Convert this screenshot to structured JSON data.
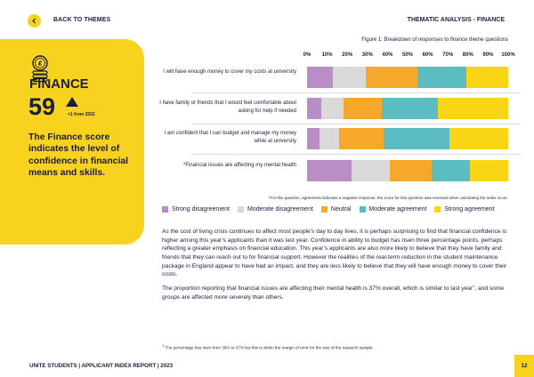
{
  "header": {
    "back_label": "BACK TO THEMES",
    "section_label": "THEMATIC ANALYSIS - FINANCE"
  },
  "panel": {
    "title": "FINANCE",
    "score": "59",
    "change": "+1 from 2022",
    "description": "The Finance score indicates the level of confidence in financial means and skills.",
    "accent_color": "#f7d21e"
  },
  "chart_data": {
    "type": "bar",
    "orientation": "horizontal-stacked",
    "title": "Figure 1: Breakdown of responses to finance theme questions",
    "x_ticks": [
      "0%",
      "10%",
      "20%",
      "30%",
      "40%",
      "50%",
      "60%",
      "70%",
      "80%",
      "90%",
      "100%"
    ],
    "xlim": [
      0,
      100
    ],
    "categories": [
      "I will have enough money to cover my costs at university",
      "I have family or friends that I would feel comfortable about asking for help if needed",
      "I am confident that I can budget and manage my money while at university",
      "*Financial issues are affecting my mental health"
    ],
    "series": [
      {
        "name": "Strong disagreement",
        "color": "#b98dc6",
        "values": [
          13,
          7,
          6,
          22
        ]
      },
      {
        "name": "Moderate disagreement",
        "color": "#d9d9d9",
        "values": [
          16,
          11,
          10,
          19
        ]
      },
      {
        "name": "Neutral",
        "color": "#f5a82a",
        "values": [
          26,
          19,
          22,
          21
        ]
      },
      {
        "name": "Moderate agreement",
        "color": "#5bbcc1",
        "values": [
          24,
          28,
          33,
          19
        ]
      },
      {
        "name": "Strong agreement",
        "color": "#fad515",
        "values": [
          21,
          35,
          29,
          19
        ]
      }
    ],
    "legend_position": "bottom",
    "footnote": "*For this question, agreement indicates a negative response; the score for this question was reversed when calculating the index score."
  },
  "body": {
    "paragraph1": "As the cost of living crisis continues to affect most people’s day to day lives, it is perhaps surprising to find that financial confidence is higher among this year’s applicants than it was last year. Confidence in ability to budget has risen three percentage points, perhaps reflecting a greater emphasis on financial education. This year’s applicants are also more likely to believe that they have family and friends that they can reach out to for financial support. However the realities of the real-term reduction in the student maintenance package in England appear to have had an impact, and they are less likely to believe that they will have enough money to cover their costs.",
    "paragraph2_a": "The proportion reporting that financial issues are affecting their mental health is 37% overall, which is similar to last year",
    "paragraph2_sup": "1",
    "paragraph2_b": ", and some groups are affected more severely than others."
  },
  "footnote": {
    "marker": "1",
    "text": " The percentage has risen from 36% to 37% but this is within the margin of error for the size of the research sample."
  },
  "footer": {
    "title": "UNITE STUDENTS | APPLICANT INDEX REPORT | 2023",
    "page": "12"
  }
}
